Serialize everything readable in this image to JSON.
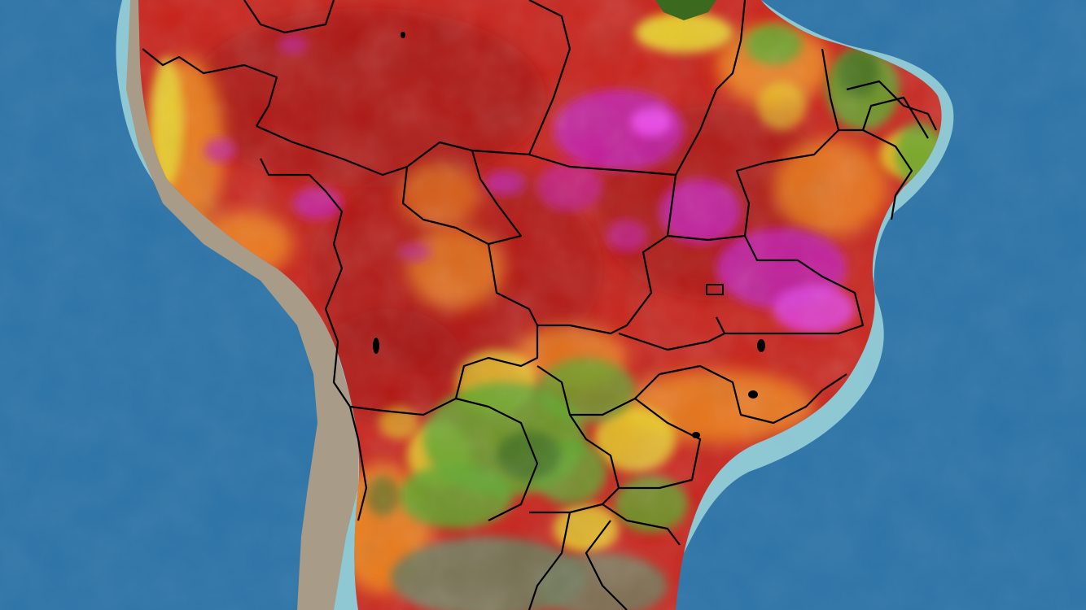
{
  "map": {
    "type": "temperature-anomaly-heatmap",
    "region": "South America",
    "has_visible_text": false,
    "colors": {
      "ocean_deep": "#2a6a9a",
      "ocean_mid": "#3a86b8",
      "shelf": "#8fcfd6",
      "andes_land": "#a79a86",
      "cool_dark_green": "#3b6a1e",
      "green": "#5fa62a",
      "yellow": "#e8d82a",
      "orange": "#f08a1c",
      "red": "#d4241a",
      "dark_red": "#9a1010",
      "magenta": "#c21fb0",
      "muted_gray": "#6f7a5a",
      "borders": "#000000"
    },
    "legend": null
  }
}
